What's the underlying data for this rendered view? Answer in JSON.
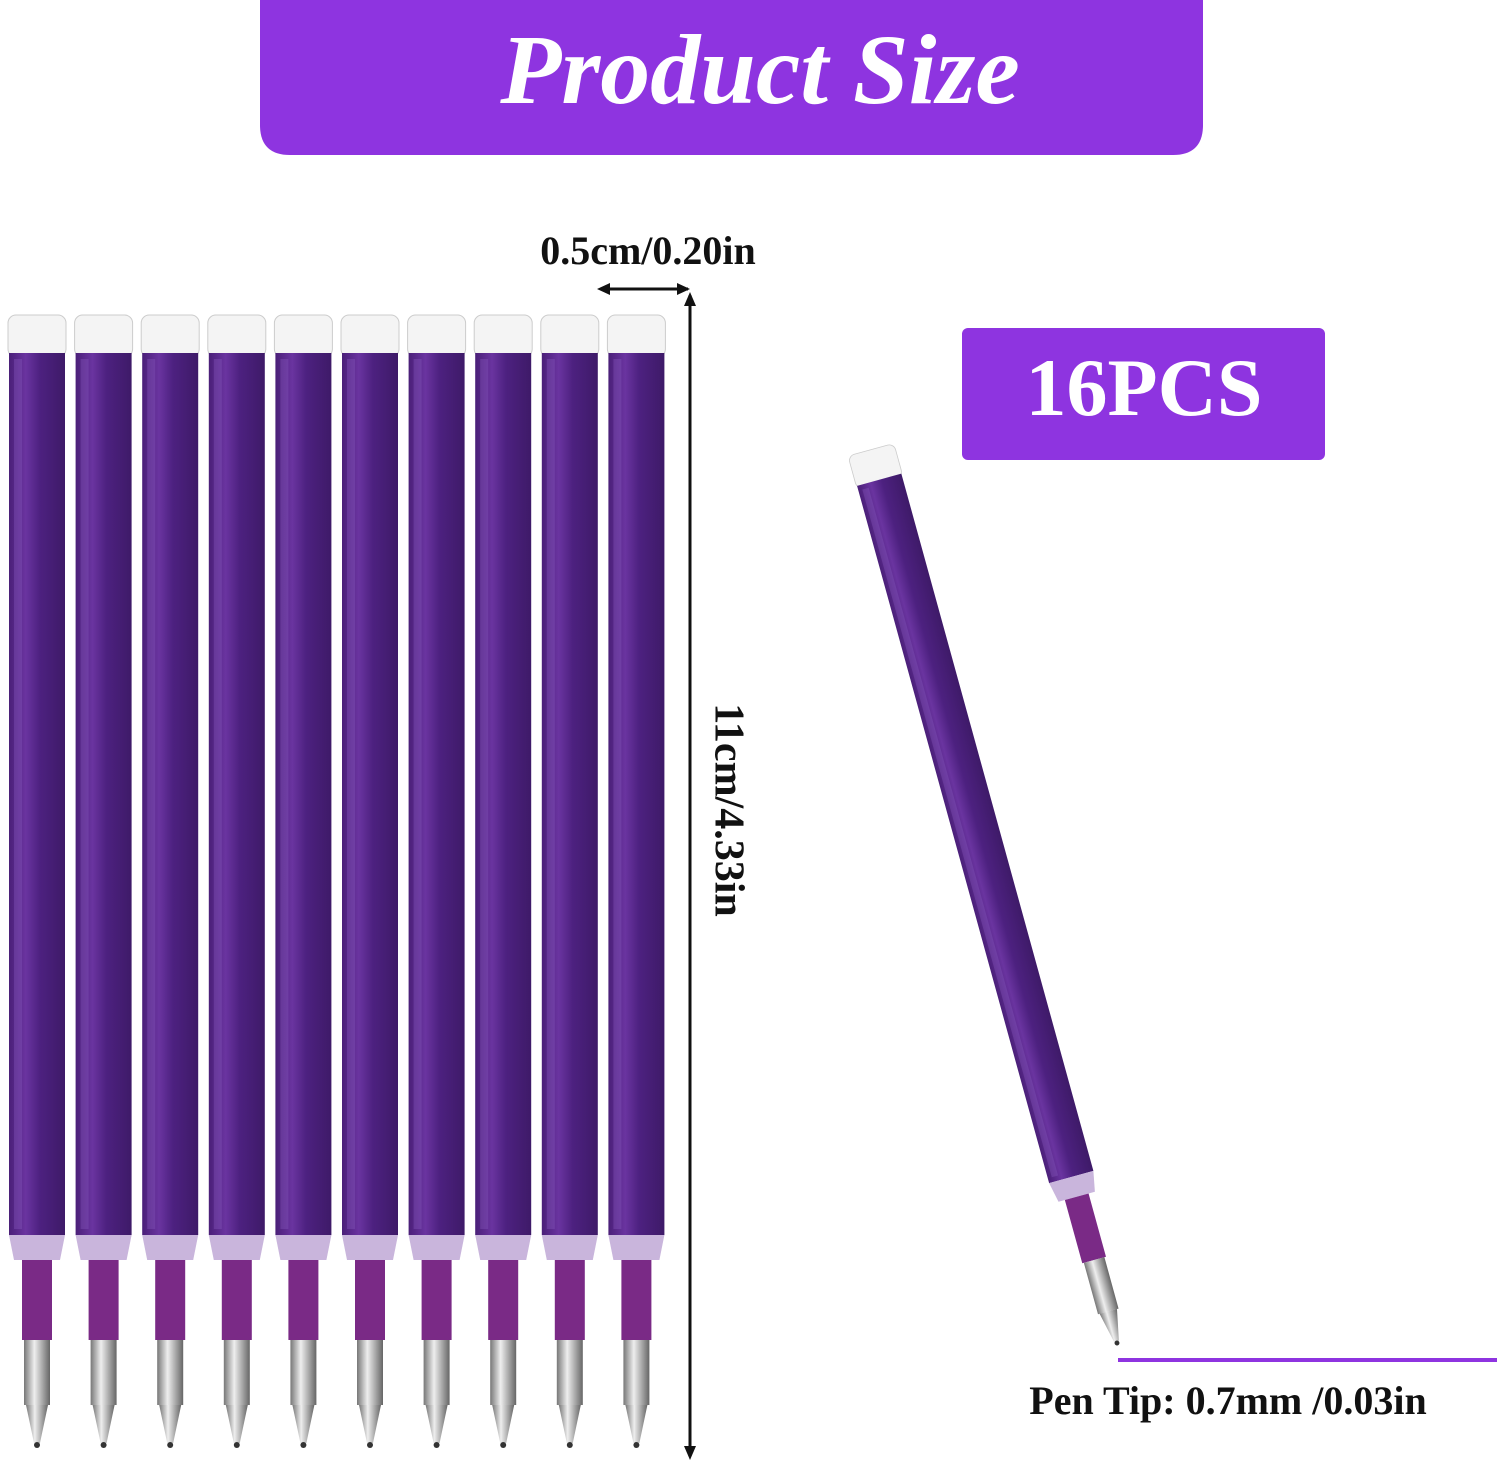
{
  "header": {
    "title": "Product Size"
  },
  "dimensions": {
    "width": "0.5cm/0.20in",
    "length": "11cm/4.33in",
    "pen_tip": "Pen Tip: 0.7mm /0.03in"
  },
  "badge": {
    "count": "16PCS"
  }
}
